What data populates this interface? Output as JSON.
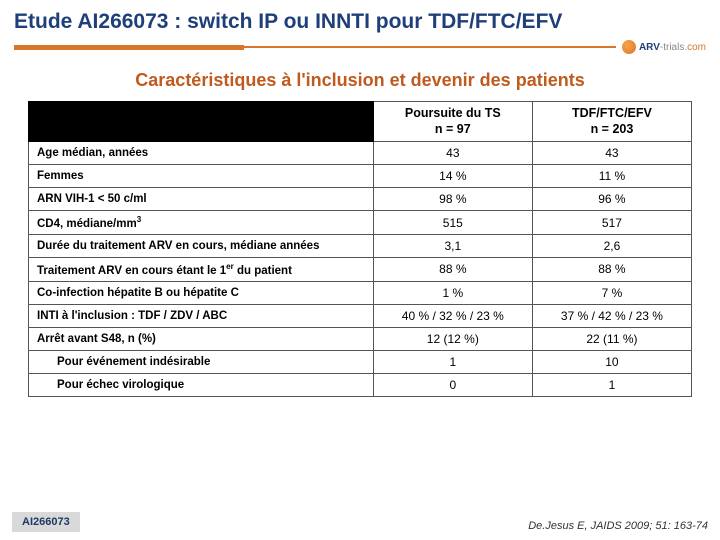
{
  "colors": {
    "title": "#1f3f7a",
    "accent": "#d9762a",
    "subtitle": "#c05a1e",
    "header_bg": "#000000"
  },
  "title": "Etude AI266073 : switch IP ou INNTI pour TDF/FTC/EFV",
  "logo_text": "ARV-trials.com",
  "subtitle": "Caractéristiques à l'inclusion et devenir des patients",
  "columns": [
    {
      "label_line1": "Poursuite du TS",
      "label_line2": "n = 97"
    },
    {
      "label_line1": "TDF/FTC/EFV",
      "label_line2": "n = 203"
    }
  ],
  "rows": [
    {
      "label": "Age médian, années",
      "html": false,
      "indent": false,
      "vals": [
        "43",
        "43"
      ]
    },
    {
      "label": "Femmes",
      "html": false,
      "indent": false,
      "vals": [
        "14 %",
        "11 %"
      ]
    },
    {
      "label": "ARN VIH-1 < 50 c/ml",
      "html": false,
      "indent": false,
      "vals": [
        "98 %",
        "96 %"
      ]
    },
    {
      "label": "CD4, médiane/mm<span class='sup'>3</span>",
      "html": true,
      "indent": false,
      "vals": [
        "515",
        "517"
      ]
    },
    {
      "label": "Durée du traitement ARV en cours, médiane années",
      "html": false,
      "indent": false,
      "vals": [
        "3,1",
        "2,6"
      ]
    },
    {
      "label": "Traitement ARV en cours étant le 1<span class='sup'>er</span> du patient",
      "html": true,
      "indent": false,
      "vals": [
        "88 %",
        "88 %"
      ]
    },
    {
      "label": "Co-infection hépatite B ou hépatite C",
      "html": false,
      "indent": false,
      "vals": [
        "1 %",
        "7 %"
      ]
    },
    {
      "label": "INTI à l'inclusion : TDF / ZDV / ABC",
      "html": false,
      "indent": false,
      "vals": [
        "40 % / 32 % / 23 %",
        "37 % / 42 % / 23 %"
      ]
    },
    {
      "label": "Arrêt avant S48, n (%)",
      "html": false,
      "indent": false,
      "vals": [
        "12 (12 %)",
        "22 (11 %)"
      ]
    },
    {
      "label": "Pour événement indésirable",
      "html": false,
      "indent": true,
      "vals": [
        "1",
        "10"
      ]
    },
    {
      "label": "Pour échec virologique",
      "html": false,
      "indent": true,
      "vals": [
        "0",
        "1"
      ]
    }
  ],
  "layout": {
    "col_widths_pct": [
      52,
      24,
      24
    ]
  },
  "footer_tag": "AI266073",
  "citation": "De.Jesus E, JAIDS 2009; 51: 163-74"
}
